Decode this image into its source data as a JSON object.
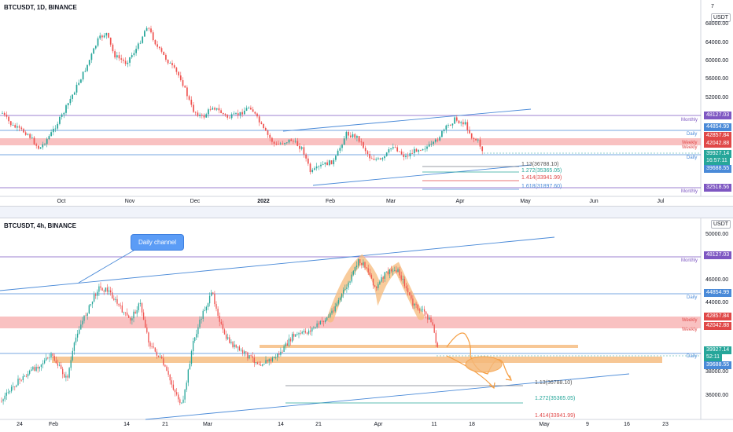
{
  "top_chart": {
    "title": "BTCUSDT, 1D, BINANCE",
    "settings_label": "7",
    "currency_label": "USDT",
    "price_ticks": [
      "68000.00",
      "64000.00",
      "60000.00",
      "56000.00",
      "52000.00"
    ],
    "date_ticks": [
      "Oct",
      "Nov",
      "Dec",
      "2022",
      "Feb",
      "Mar",
      "Apr",
      "May",
      "Jun",
      "Jul"
    ],
    "levels": [
      {
        "value": "48127.03",
        "color": "#7e57c2",
        "tag": "Monthly",
        "tag_color": "#7e57c2"
      },
      {
        "value": "44854.99",
        "color": "#4a8ad8",
        "tag": "Daily",
        "tag_color": "#4a8ad8"
      },
      {
        "value": "42857.84",
        "color": "#e04848",
        "tag": "Weekly",
        "tag_color": "#e04848"
      },
      {
        "value": "42042.88",
        "color": "#e04848",
        "tag": "Weekly",
        "tag_color": "#e04848"
      },
      {
        "value": "39927.14",
        "color": "#26a69a",
        "tag": "",
        "tag_color": "#26a69a"
      },
      {
        "value": "16:57:11",
        "color": "#26a69a",
        "tag": "",
        "tag_color": "#26a69a"
      },
      {
        "value": "39688.55",
        "color": "#4a8ad8",
        "tag": "Daily",
        "tag_color": "#4a8ad8"
      },
      {
        "value": "32518.56",
        "color": "#7e57c2",
        "tag": "Monthly",
        "tag_color": "#7e57c2"
      }
    ],
    "fib_labels": [
      "1.13(36788.10)",
      "1.272(35365.05)",
      "1.414(33941.99)",
      "1.618(31897.60)"
    ]
  },
  "bottom_chart": {
    "title": "BTCUSDT, 4h, BINANCE",
    "currency_label": "USDT",
    "callout": "Daily channel",
    "price_ticks": [
      "50000.00",
      "46000.00",
      "44000.00",
      "38000.00",
      "36000.00"
    ],
    "date_ticks": [
      "24",
      "Feb",
      "14",
      "21",
      "Mar",
      "14",
      "21",
      "Apr",
      "11",
      "18",
      "May",
      "9",
      "16",
      "23"
    ],
    "levels": [
      {
        "value": "48127.03",
        "color": "#7e57c2",
        "tag": "Monthly",
        "tag_color": "#7e57c2"
      },
      {
        "value": "44854.99",
        "color": "#4a8ad8",
        "tag": "Daily",
        "tag_color": "#4a8ad8"
      },
      {
        "value": "42857.84",
        "color": "#e04848",
        "tag": "Weekly",
        "tag_color": "#e04848"
      },
      {
        "value": "42042.88",
        "color": "#e04848",
        "tag": "Weekly",
        "tag_color": "#e04848"
      },
      {
        "value": "39927.14",
        "color": "#26a69a",
        "tag": "",
        "tag_color": "#26a69a"
      },
      {
        "value": "52:11",
        "color": "#26a69a",
        "tag": "",
        "tag_color": "#26a69a"
      },
      {
        "value": "39688.55",
        "color": "#4a8ad8",
        "tag": "Daily",
        "tag_color": "#4a8ad8"
      }
    ],
    "fib_labels": [
      "1.13(36788.10)",
      "1.272(35365.05)",
      "1.414(33941.99)"
    ]
  }
}
